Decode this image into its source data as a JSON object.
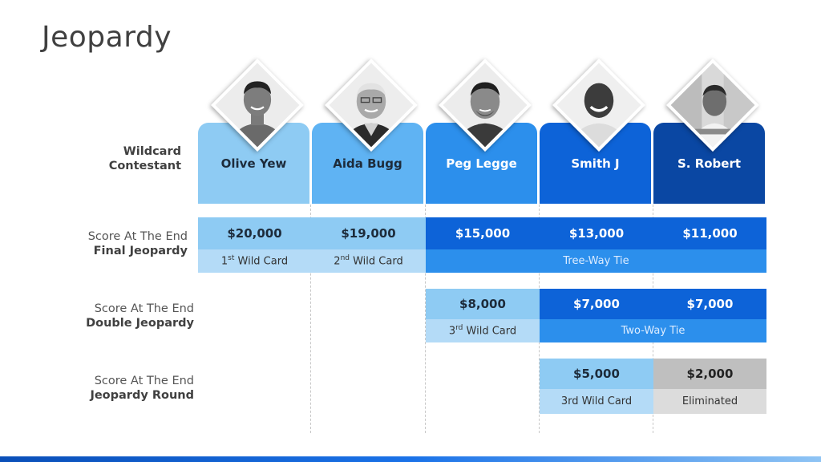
{
  "title": "Jeopardy",
  "row_labels": {
    "wildcard": {
      "line1": "Wildcard",
      "line2": "Contestant"
    },
    "final": {
      "line1": "Score At The End",
      "line2": "Final Jeopardy"
    },
    "double": {
      "line1": "Score At The End",
      "line2": "Double Jeopardy"
    },
    "round": {
      "line1": "Score At The End",
      "line2": "Jeopardy Round"
    }
  },
  "contestants": [
    {
      "name": "Olive Yew"
    },
    {
      "name": "Aida Bugg"
    },
    {
      "name": "Peg Legge"
    },
    {
      "name": "Smith J"
    },
    {
      "name": "S. Robert"
    }
  ],
  "final_jeopardy": {
    "scores": [
      "$20,000",
      "$19,000",
      "$15,000",
      "$13,000",
      "$11,000"
    ],
    "notes": [
      {
        "num": "1",
        "sup": "st",
        "text": " Wild Card"
      },
      {
        "num": "2",
        "sup": "nd",
        "text": " Wild Card"
      }
    ],
    "tie": "Tree-Way Tie"
  },
  "double_jeopardy": {
    "scores": [
      "$8,000",
      "$7,000",
      "$7,000"
    ],
    "note": {
      "num": "3",
      "sup": "rd",
      "text": " Wild Card"
    },
    "tie": "Two-Way Tie"
  },
  "jeopardy_round": {
    "scores": [
      "$5,000",
      "$2,000"
    ],
    "notes": [
      "3rd Wild Card",
      "Eliminated"
    ]
  },
  "colors": {
    "c1": "#8ecbf3",
    "c2": "#5fb3f3",
    "c3": "#2c8fec",
    "c4": "#0d63d8",
    "c5": "#0a47a3",
    "grey": "#bfbfbf"
  }
}
